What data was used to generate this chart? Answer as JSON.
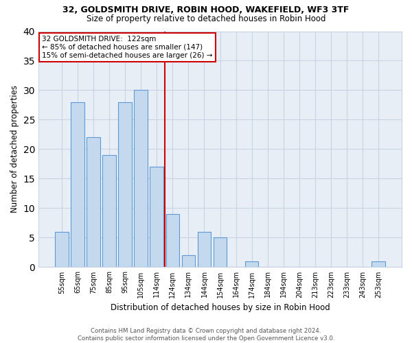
{
  "title_line1": "32, GOLDSMITH DRIVE, ROBIN HOOD, WAKEFIELD, WF3 3TF",
  "title_line2": "Size of property relative to detached houses in Robin Hood",
  "xlabel": "Distribution of detached houses by size in Robin Hood",
  "ylabel": "Number of detached properties",
  "categories": [
    "55sqm",
    "65sqm",
    "75sqm",
    "85sqm",
    "95sqm",
    "105sqm",
    "114sqm",
    "124sqm",
    "134sqm",
    "144sqm",
    "154sqm",
    "164sqm",
    "174sqm",
    "184sqm",
    "194sqm",
    "204sqm",
    "213sqm",
    "223sqm",
    "233sqm",
    "243sqm",
    "253sqm"
  ],
  "values": [
    6,
    28,
    22,
    19,
    28,
    30,
    17,
    9,
    2,
    6,
    5,
    0,
    1,
    0,
    0,
    0,
    0,
    0,
    0,
    0,
    1
  ],
  "bar_color": "#c5d9ee",
  "bar_edge_color": "#5b9bd5",
  "vline_x": 6.5,
  "vline_color": "#cc0000",
  "annotation_line1": "32 GOLDSMITH DRIVE:  122sqm",
  "annotation_line2": "← 85% of detached houses are smaller (147)",
  "annotation_line3": "15% of semi-detached houses are larger (26) →",
  "annotation_box_color": "#ffffff",
  "annotation_box_edge_color": "#cc0000",
  "ylim": [
    0,
    40
  ],
  "yticks": [
    0,
    5,
    10,
    15,
    20,
    25,
    30,
    35,
    40
  ],
  "grid_color": "#c8d4e3",
  "plot_bg_color": "#e8eef6",
  "figure_bg_color": "#ffffff",
  "footnote": "Contains HM Land Registry data © Crown copyright and database right 2024.\nContains public sector information licensed under the Open Government Licence v3.0."
}
